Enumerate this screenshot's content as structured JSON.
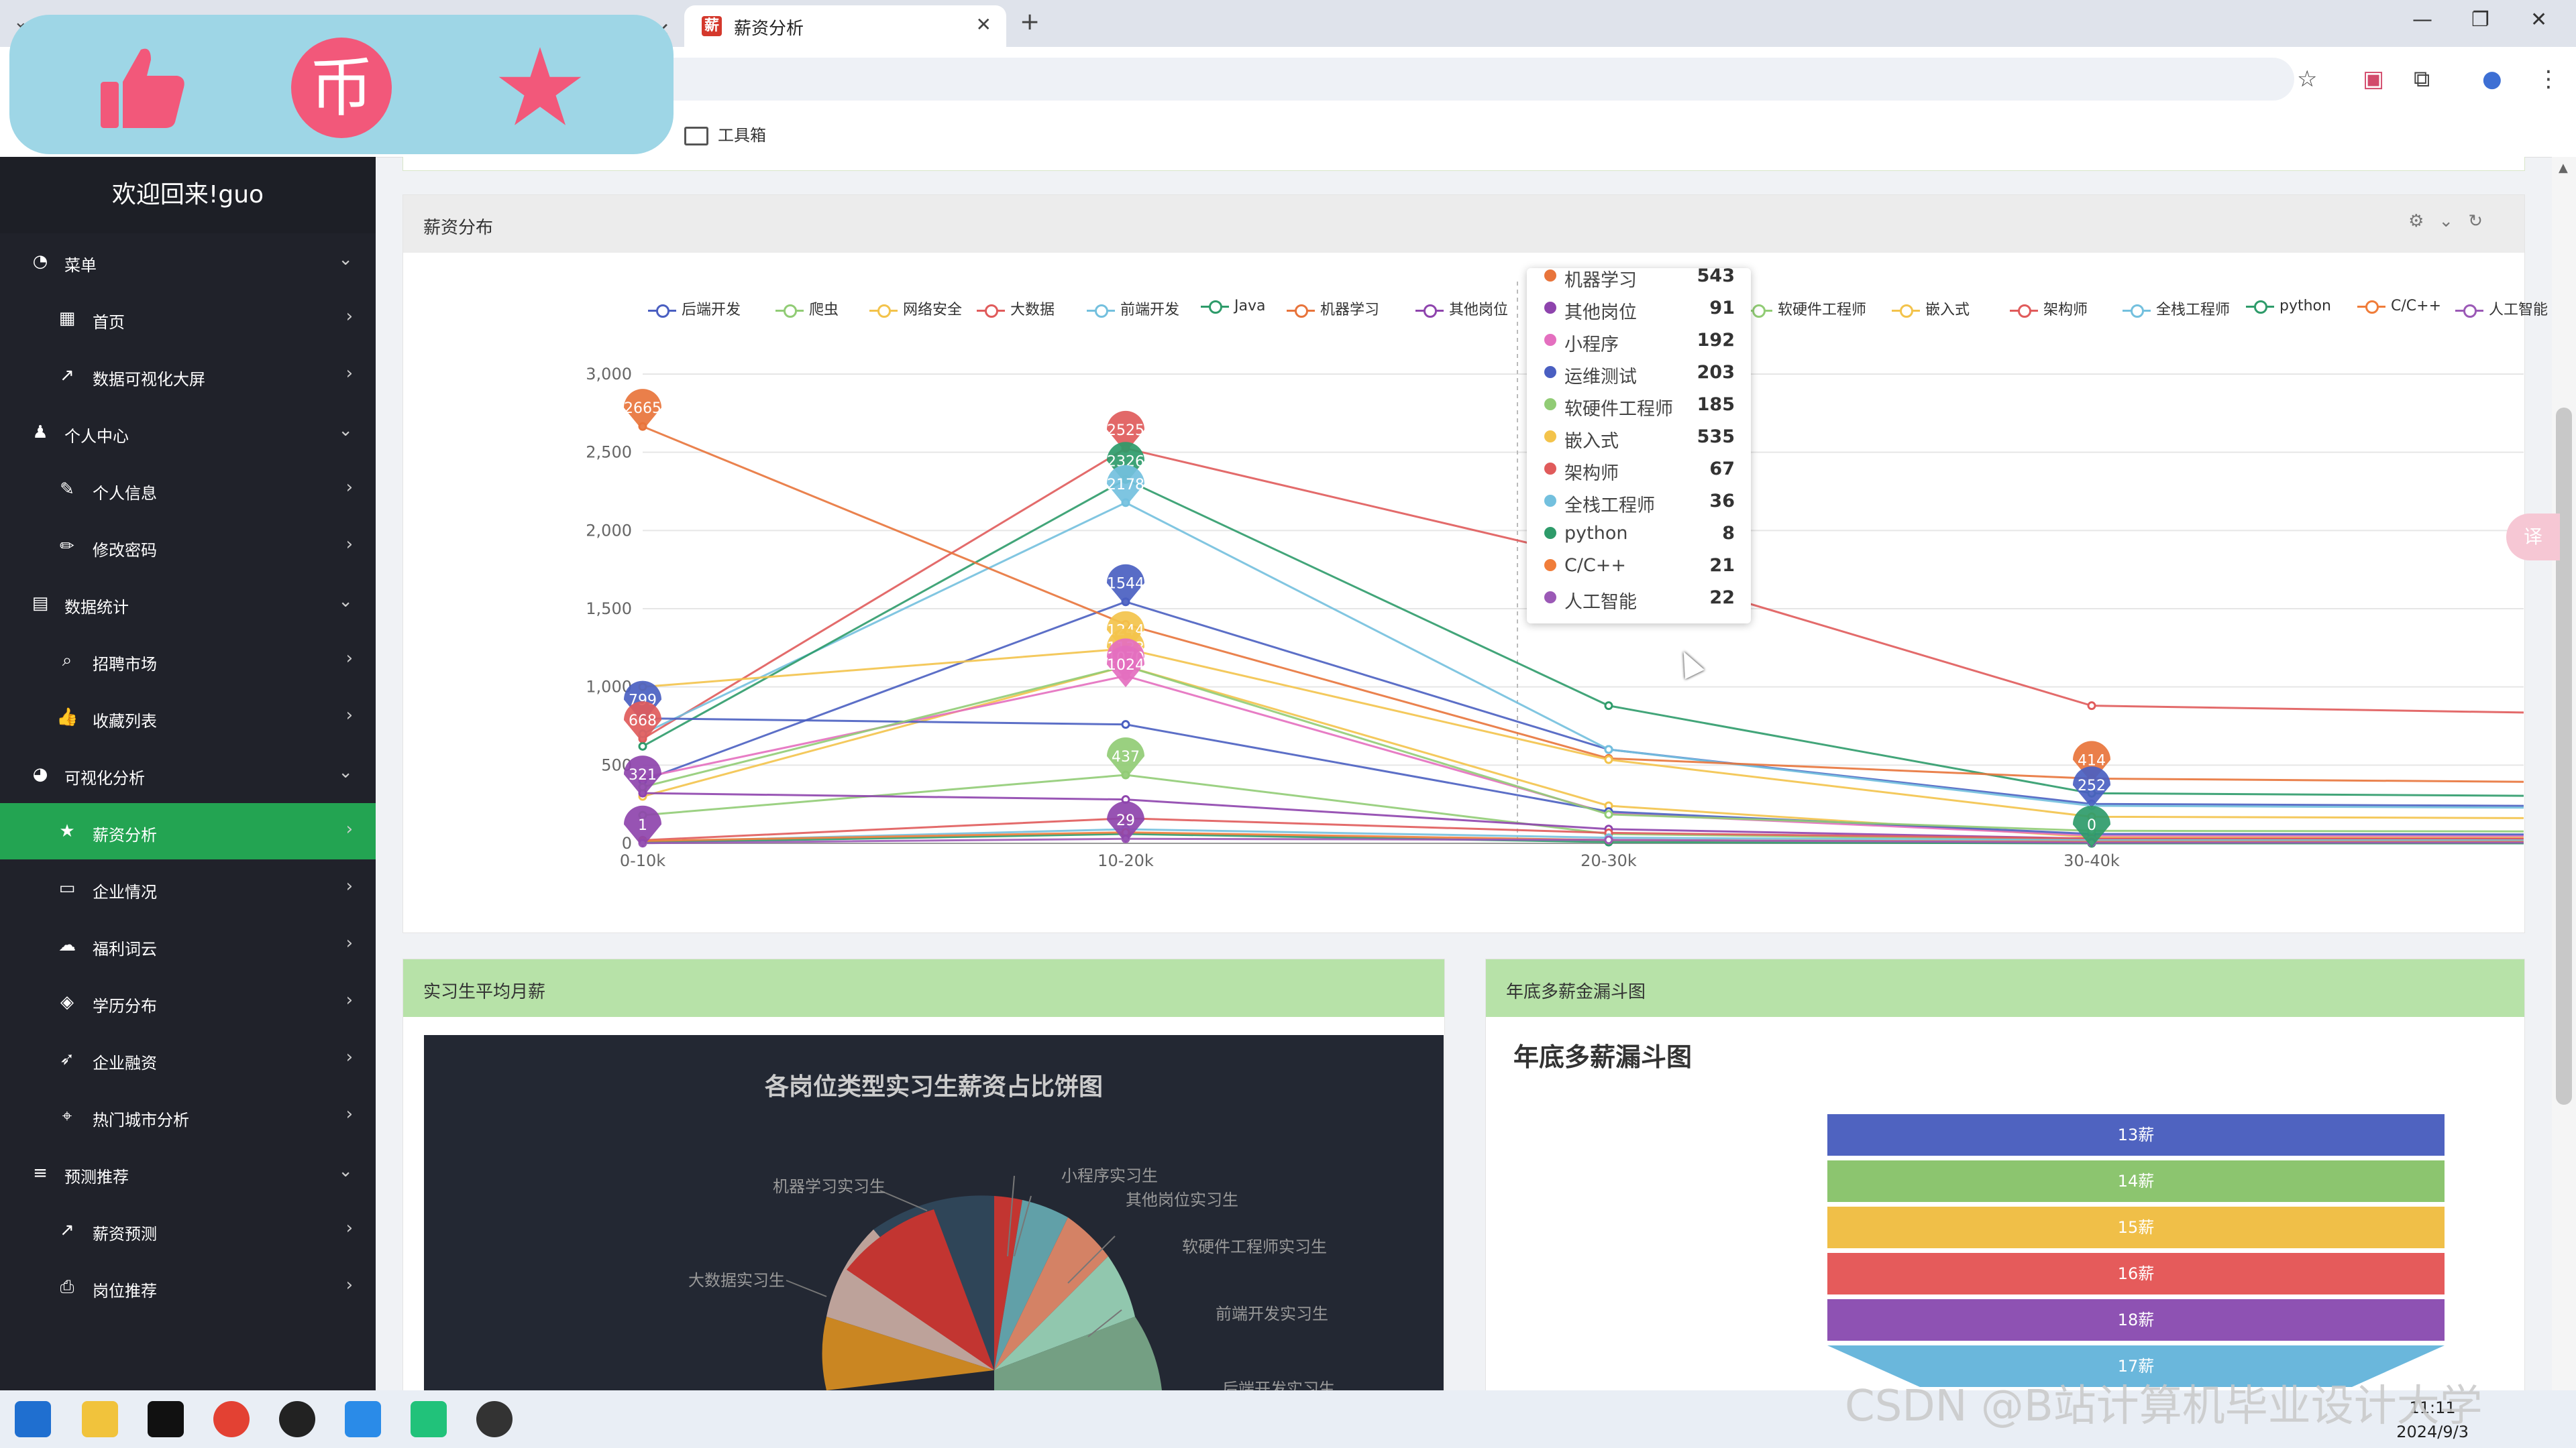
{
  "browser": {
    "active_tab_title": "薪资分析",
    "bookmark_folder": "工具箱",
    "window_controls": [
      "minimize",
      "restore",
      "close"
    ]
  },
  "sidebar": {
    "welcome": "欢迎回来!guo",
    "items": [
      {
        "label": "菜单",
        "icon": "gauge-icon",
        "type": "group"
      },
      {
        "label": "首页",
        "icon": "map-icon",
        "type": "sub"
      },
      {
        "label": "数据可视化大屏",
        "icon": "line-chart-icon",
        "type": "sub"
      },
      {
        "label": "个人中心",
        "icon": "user-icon",
        "type": "group"
      },
      {
        "label": "个人信息",
        "icon": "feather-icon",
        "type": "sub"
      },
      {
        "label": "修改密码",
        "icon": "pencil-icon",
        "type": "sub"
      },
      {
        "label": "数据统计",
        "icon": "clipboard-icon",
        "type": "group"
      },
      {
        "label": "招聘市场",
        "icon": "search-icon",
        "type": "sub"
      },
      {
        "label": "收藏列表",
        "icon": "thumbs-up-icon",
        "type": "sub"
      },
      {
        "label": "可视化分析",
        "icon": "pie-chart-icon",
        "type": "group"
      },
      {
        "label": "薪资分析",
        "icon": "star-icon",
        "type": "sub",
        "active": true
      },
      {
        "label": "企业情况",
        "icon": "folder-icon",
        "type": "sub"
      },
      {
        "label": "福利词云",
        "icon": "cloud-icon",
        "type": "sub"
      },
      {
        "label": "学历分布",
        "icon": "graduation-cap-icon",
        "type": "sub"
      },
      {
        "label": "企业融资",
        "icon": "rocket-icon",
        "type": "sub"
      },
      {
        "label": "热门城市分析",
        "icon": "map-pin-icon",
        "type": "sub"
      },
      {
        "label": "预测推荐",
        "icon": "list-plus-icon",
        "type": "group"
      },
      {
        "label": "薪资预测",
        "icon": "line-chart-icon",
        "type": "sub"
      },
      {
        "label": "岗位推荐",
        "icon": "printer-icon",
        "type": "sub"
      }
    ]
  },
  "salary_panel": {
    "title": "薪资分布",
    "tooltip": [
      {
        "name": "机器学习",
        "value": "543",
        "color": "#e8743b"
      },
      {
        "name": "其他岗位",
        "value": "91",
        "color": "#8e44ad"
      },
      {
        "name": "小程序",
        "value": "192",
        "color": "#e46fbf"
      },
      {
        "name": "运维测试",
        "value": "203",
        "color": "#4a5fc1"
      },
      {
        "name": "软硬件工程师",
        "value": "185",
        "color": "#91cc75"
      },
      {
        "name": "嵌入式",
        "value": "535",
        "color": "#f3c34b"
      },
      {
        "name": "架构师",
        "value": "67",
        "color": "#e05b5b"
      },
      {
        "name": "全栈工程师",
        "value": "36",
        "color": "#73c0de"
      },
      {
        "name": "python",
        "value": "8",
        "color": "#2e9b6a"
      },
      {
        "name": "C/C++",
        "value": "21",
        "color": "#f07d3a"
      },
      {
        "name": "人工智能",
        "value": "22",
        "color": "#9b59b6"
      }
    ],
    "bubbles": [
      {
        "text": "2665",
        "color": "#e8743b"
      },
      {
        "text": "799",
        "color": "#4a5fc1"
      },
      {
        "text": "668",
        "color": "#e05b5b"
      },
      {
        "text": "321",
        "color": "#8e44ad"
      },
      {
        "text": "1",
        "color": "#8e44ad"
      },
      {
        "text": "2525",
        "color": "#e05b5b"
      },
      {
        "text": "2326",
        "color": "#2e9b6a"
      },
      {
        "text": "2178",
        "color": "#73c0de"
      },
      {
        "text": "1544",
        "color": "#4a5fc1"
      },
      {
        "text": "1244",
        "color": "#f3c34b"
      },
      {
        "text": "1133",
        "color": "#f3c34b"
      },
      {
        "text": "1070",
        "color": "#e46fbf"
      },
      {
        "text": "1024",
        "color": "#e46fbf"
      },
      {
        "text": "437",
        "color": "#91cc75"
      },
      {
        "text": "29",
        "color": "#8e44ad"
      },
      {
        "text": "414",
        "color": "#e8743b"
      },
      {
        "text": "252",
        "color": "#4a5fc1"
      },
      {
        "text": "0",
        "color": "#2e9b6a"
      }
    ]
  },
  "chart_data": {
    "type": "line",
    "x": [
      "0-10k",
      "10-20k",
      "20-30k",
      "30-40k"
    ],
    "ylim": [
      0,
      3000
    ],
    "yticks": [
      "0",
      "500",
      "1,000",
      "1,500",
      "2,000",
      "2,500",
      "3,000"
    ],
    "legend_position": "top",
    "series": [
      {
        "name": "后端开发",
        "color": "#4a5fc1",
        "values": [
          400,
          1544,
          600,
          252
        ]
      },
      {
        "name": "爬虫",
        "color": "#91cc75",
        "values": [
          180,
          437,
          60,
          20
        ]
      },
      {
        "name": "网络安全",
        "color": "#f3c34b",
        "values": [
          300,
          1133,
          240,
          40
        ]
      },
      {
        "name": "大数据",
        "color": "#e05b5b",
        "values": [
          668,
          2525,
          1800,
          880
        ]
      },
      {
        "name": "前端开发",
        "color": "#73c0de",
        "values": [
          700,
          2178,
          600,
          240
        ]
      },
      {
        "name": "Java",
        "color": "#2e9b6a",
        "values": [
          620,
          2326,
          880,
          320
        ]
      },
      {
        "name": "机器学习",
        "color": "#e8743b",
        "values": [
          2665,
          1400,
          543,
          414
        ]
      },
      {
        "name": "其他岗位",
        "color": "#8e44ad",
        "values": [
          321,
          280,
          91,
          30
        ]
      },
      {
        "name": "小程序",
        "color": "#e46fbf",
        "values": [
          420,
          1070,
          192,
          50
        ]
      },
      {
        "name": "运维测试",
        "color": "#4a5fc1",
        "values": [
          799,
          760,
          203,
          60
        ]
      },
      {
        "name": "软硬件工程师",
        "color": "#91cc75",
        "values": [
          360,
          1133,
          185,
          80
        ]
      },
      {
        "name": "嵌入式",
        "color": "#f3c34b",
        "values": [
          1000,
          1244,
          535,
          170
        ]
      },
      {
        "name": "架构师",
        "color": "#e05b5b",
        "values": [
          20,
          160,
          67,
          30
        ]
      },
      {
        "name": "全栈工程师",
        "color": "#73c0de",
        "values": [
          10,
          90,
          36,
          20
        ]
      },
      {
        "name": "python",
        "color": "#2e9b6a",
        "values": [
          5,
          60,
          8,
          0
        ]
      },
      {
        "name": "C/C++",
        "color": "#f07d3a",
        "values": [
          15,
          70,
          21,
          10
        ]
      },
      {
        "name": "人工智能",
        "color": "#9b59b6",
        "values": [
          1,
          29,
          22,
          5
        ]
      }
    ]
  },
  "intern_panel": {
    "title": "实习生平均月薪",
    "pie_title": "各岗位类型实习生薪资占比饼图",
    "pie_labels": [
      "机器学习实习生",
      "小程序实习生",
      "其他岗位实习生",
      "软硬件工程师实习生",
      "大数据实习生",
      "前端开发实习生",
      "后端开发实习生"
    ]
  },
  "funnel_panel": {
    "title": "年底多薪金漏斗图",
    "chart_title": "年底多薪漏斗图",
    "bars": [
      {
        "label": "13薪",
        "color": "#4f63c0"
      },
      {
        "label": "14薪",
        "color": "#8cc56f"
      },
      {
        "label": "15薪",
        "color": "#f0bf48"
      },
      {
        "label": "16薪",
        "color": "#e55b5b"
      },
      {
        "label": "18薪",
        "color": "#8e52b3"
      },
      {
        "label": "17薪",
        "color": "#6ab7dc"
      }
    ]
  },
  "taskbar": {
    "time": "11:11",
    "date": "2024/9/3"
  },
  "watermark": "CSDN @B站计算机毕业设计大学"
}
